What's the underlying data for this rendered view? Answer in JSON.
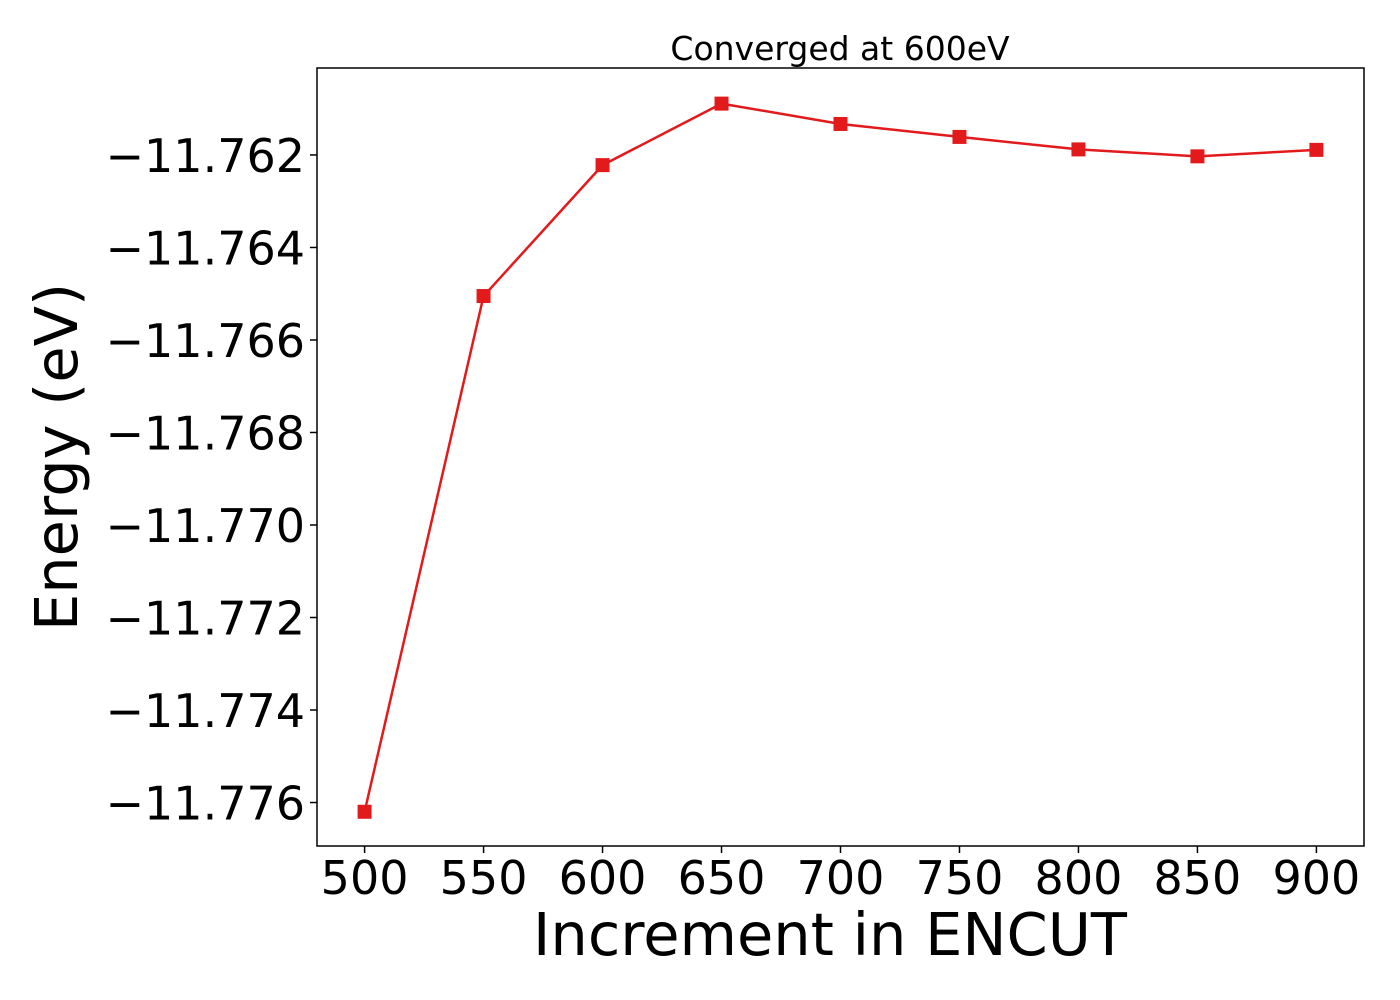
{
  "chart_data": {
    "type": "line",
    "title": "Converged at 600eV",
    "xlabel": "Increment in ENCUT",
    "ylabel": "Energy (eV)",
    "x": [
      500,
      550,
      600,
      650,
      700,
      750,
      800,
      850,
      900
    ],
    "series": [
      {
        "values": [
          -11.7762,
          -11.76505,
          -11.76222,
          -11.76089,
          -11.76133,
          -11.76161,
          -11.76188,
          -11.76203,
          -11.76189
        ],
        "color": "#e31a1c",
        "marker": "square"
      }
    ],
    "xticks": [
      500,
      550,
      600,
      650,
      700,
      750,
      800,
      850,
      900
    ],
    "xtick_labels": [
      "500",
      "550",
      "600",
      "650",
      "700",
      "750",
      "800",
      "850",
      "900"
    ],
    "yticks": [
      -11.776,
      -11.774,
      -11.772,
      -11.77,
      -11.768,
      -11.766,
      -11.764,
      -11.762
    ],
    "ytick_labels": [
      "−11.776",
      "−11.774",
      "−11.772",
      "−11.770",
      "−11.768",
      "−11.766",
      "−11.764",
      "−11.762"
    ],
    "xlim": [
      480,
      920
    ],
    "ylim": [
      -11.77694,
      -11.76012
    ],
    "grid": false,
    "legend": "none"
  }
}
